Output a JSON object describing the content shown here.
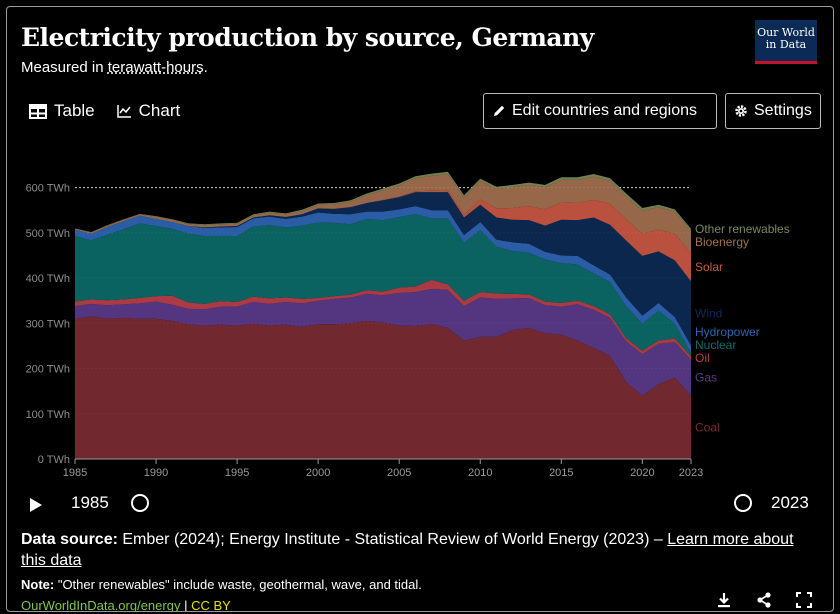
{
  "header": {
    "title": "Electricity production by source, Germany",
    "subtitle_prefix": "Measured in ",
    "subtitle_unit": "terawatt-hours",
    "subtitle_suffix": ".",
    "logo_line1": "Our World",
    "logo_line2": "in Data"
  },
  "tabs": [
    {
      "label": "Table",
      "icon": "table-icon"
    },
    {
      "label": "Chart",
      "icon": "line-chart-icon"
    }
  ],
  "buttons": {
    "edit_label": "Edit countries and regions",
    "settings_label": "Settings"
  },
  "timeline": {
    "start_year": "1985",
    "end_year": "2023"
  },
  "source": {
    "label": "Data source:",
    "text": " Ember (2024); Energy Institute - Statistical Review of World Energy (2023) – ",
    "link": "Learn more about this data"
  },
  "note": {
    "label": "Note:",
    "text": " \"Other renewables\" include waste, geothermal, wave, and tidal."
  },
  "footer": {
    "site": "OurWorldInData.org/energy",
    "separator": " | ",
    "license": "CC BY"
  },
  "colors": {
    "coal": "#7b2b33",
    "gas": "#5b3a8a",
    "oil": "#b8404a",
    "nuclear": "#0b6b68",
    "hydropower": "#2f64b4",
    "wind": "#0d2a55",
    "solar": "#c95843",
    "bioenergy": "#a3704f",
    "other_renewables": "#7a8a58"
  },
  "chart_data": {
    "type": "area",
    "stacked": true,
    "ylabel": "",
    "ylim": [
      0,
      650
    ],
    "yticks": [
      0,
      100,
      200,
      300,
      400,
      500,
      600
    ],
    "ytick_labels": [
      "0 TWh",
      "100 TWh",
      "200 TWh",
      "300 TWh",
      "400 TWh",
      "500 TWh",
      "600 TWh"
    ],
    "xticks": [
      1985,
      1990,
      1995,
      2000,
      2005,
      2010,
      2015,
      2020,
      2023
    ],
    "grid": "horizontal dotted",
    "legend": "right, labels at series ends",
    "x": [
      1985,
      1986,
      1987,
      1988,
      1989,
      1990,
      1991,
      1992,
      1993,
      1994,
      1995,
      1996,
      1997,
      1998,
      1999,
      2000,
      2001,
      2002,
      2003,
      2004,
      2005,
      2006,
      2007,
      2008,
      2009,
      2010,
      2011,
      2012,
      2013,
      2014,
      2015,
      2016,
      2017,
      2018,
      2019,
      2020,
      2021,
      2022,
      2023
    ],
    "series": [
      {
        "name": "Coal",
        "key": "coal",
        "values": [
          310,
          315,
          310,
          312,
          310,
          310,
          305,
          298,
          295,
          297,
          295,
          299,
          295,
          297,
          292,
          298,
          298,
          300,
          305,
          302,
          295,
          294,
          298,
          290,
          262,
          270,
          270,
          285,
          290,
          278,
          275,
          262,
          245,
          228,
          170,
          140,
          165,
          180,
          140
        ]
      },
      {
        "name": "Gas",
        "key": "gas",
        "values": [
          28,
          28,
          30,
          30,
          34,
          38,
          36,
          34,
          36,
          40,
          42,
          48,
          48,
          50,
          52,
          52,
          56,
          57,
          60,
          60,
          72,
          75,
          78,
          84,
          76,
          87,
          84,
          70,
          66,
          62,
          62,
          80,
          85,
          84,
          90,
          92,
          90,
          78,
          80
        ]
      },
      {
        "name": "Oil",
        "key": "oil",
        "values": [
          10,
          10,
          11,
          11,
          12,
          12,
          20,
          14,
          12,
          12,
          10,
          12,
          12,
          10,
          10,
          6,
          6,
          6,
          8,
          8,
          12,
          12,
          20,
          12,
          12,
          12,
          12,
          10,
          8,
          8,
          8,
          8,
          8,
          8,
          7,
          7,
          7,
          8,
          7
        ]
      },
      {
        "name": "Nuclear",
        "key": "nuclear",
        "values": [
          145,
          130,
          145,
          155,
          165,
          155,
          148,
          152,
          150,
          144,
          146,
          155,
          162,
          155,
          162,
          167,
          162,
          156,
          158,
          158,
          156,
          160,
          136,
          146,
          128,
          137,
          103,
          95,
          92,
          93,
          88,
          80,
          72,
          72,
          71,
          60,
          66,
          33,
          7
        ]
      },
      {
        "name": "Hydropower",
        "key": "hydropower",
        "values": [
          14,
          15,
          17,
          18,
          17,
          16,
          15,
          17,
          18,
          19,
          20,
          18,
          19,
          19,
          20,
          22,
          20,
          22,
          16,
          19,
          17,
          18,
          18,
          18,
          17,
          18,
          16,
          19,
          20,
          17,
          17,
          19,
          18,
          16,
          19,
          18,
          17,
          15,
          17
        ]
      },
      {
        "name": "Wind",
        "key": "wind",
        "values": [
          0,
          0,
          0,
          0,
          0,
          0,
          0,
          0,
          1,
          2,
          2,
          2,
          3,
          4,
          5,
          9,
          11,
          16,
          19,
          25,
          27,
          31,
          40,
          40,
          39,
          38,
          49,
          50,
          52,
          58,
          79,
          79,
          106,
          110,
          126,
          132,
          114,
          125,
          142
        ]
      },
      {
        "name": "Solar",
        "key": "solar",
        "values": [
          0,
          0,
          0,
          0,
          0,
          0,
          0,
          0,
          0,
          0,
          0,
          0,
          0,
          0,
          0,
          0,
          0,
          0,
          0,
          1,
          1,
          2,
          3,
          4,
          6,
          12,
          20,
          26,
          31,
          36,
          38,
          38,
          39,
          46,
          47,
          49,
          48,
          59,
          62
        ]
      },
      {
        "name": "Bioenergy",
        "key": "bioenergy",
        "values": [
          2,
          3,
          3,
          3,
          3,
          4,
          4,
          4,
          5,
          5,
          5,
          5,
          6,
          6,
          7,
          8,
          10,
          12,
          17,
          21,
          25,
          29,
          33,
          36,
          38,
          41,
          43,
          46,
          47,
          49,
          50,
          51,
          51,
          51,
          51,
          51,
          50,
          49,
          49
        ]
      },
      {
        "name": "Other renewables",
        "key": "other_renewables",
        "values": [
          1,
          1,
          1,
          1,
          1,
          2,
          2,
          2,
          2,
          2,
          2,
          2,
          2,
          2,
          3,
          3,
          3,
          3,
          4,
          4,
          4,
          4,
          5,
          5,
          5,
          5,
          5,
          5,
          5,
          5,
          6,
          6,
          6,
          6,
          6,
          6,
          5,
          5,
          5
        ]
      }
    ]
  }
}
